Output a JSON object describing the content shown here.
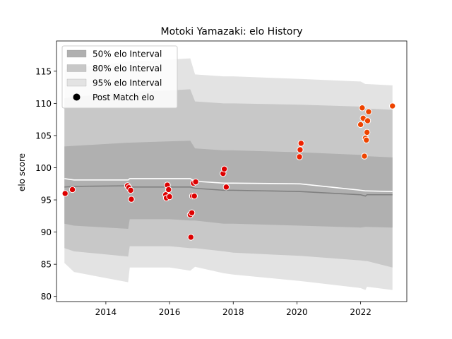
{
  "chart_data": {
    "type": "area",
    "title": "Motoki Yamazaki: elo History",
    "xlabel": "",
    "ylabel": "elo score",
    "xlim": [
      2012.45,
      2023.45
    ],
    "ylim": [
      79.2,
      119.7
    ],
    "x_ticks": [
      2014,
      2016,
      2018,
      2020,
      2022
    ],
    "y_ticks": [
      80,
      85,
      90,
      95,
      100,
      105,
      110,
      115
    ],
    "grid": false,
    "legend_placement": "top-left",
    "legend": [
      {
        "label": "50% elo Interval",
        "kind": "band",
        "color": "#b0b0b0"
      },
      {
        "label": "80% elo Interval",
        "kind": "band",
        "color": "#c8c8c8"
      },
      {
        "label": "95% elo Interval",
        "kind": "band",
        "color": "#e3e3e3"
      },
      {
        "label": "Post Match elo",
        "kind": "marker",
        "color": "#000000"
      }
    ],
    "bands": {
      "x": [
        2012.7,
        2013.0,
        2014.7,
        2014.75,
        2016.0,
        2016.65,
        2016.8,
        2017.7,
        2018.0,
        2020.1,
        2022.0,
        2022.15,
        2022.2,
        2023.0
      ],
      "p95_upper": [
        115.2,
        115.5,
        116.5,
        116.5,
        116.8,
        117.0,
        114.5,
        114.2,
        114.2,
        113.8,
        113.4,
        113.0,
        113.0,
        112.8
      ],
      "p80_upper": [
        110.8,
        111.0,
        111.8,
        111.8,
        112.0,
        112.2,
        110.3,
        110.0,
        110.0,
        109.8,
        109.5,
        109.2,
        109.2,
        109.0
      ],
      "p50_upper": [
        103.3,
        103.4,
        103.9,
        103.9,
        104.1,
        104.2,
        103.0,
        102.7,
        102.7,
        102.4,
        102.0,
        101.8,
        101.8,
        101.6
      ],
      "p50_lower": [
        91.3,
        91.0,
        90.5,
        92.0,
        92.0,
        91.8,
        91.8,
        91.3,
        91.3,
        91.0,
        90.7,
        90.8,
        90.8,
        90.7
      ],
      "p80_lower": [
        87.5,
        87.0,
        86.2,
        87.8,
        87.8,
        87.5,
        87.5,
        87.0,
        86.8,
        86.3,
        85.6,
        85.5,
        85.5,
        84.5
      ],
      "p95_lower": [
        85.2,
        83.8,
        82.2,
        84.5,
        84.5,
        84.0,
        84.6,
        83.6,
        83.4,
        82.4,
        81.3,
        81.0,
        81.5,
        81.0
      ]
    },
    "series": [
      {
        "kind": "line",
        "color": "#ffffff",
        "x": [
          2012.7,
          2013.0,
          2014.7,
          2014.75,
          2016.0,
          2016.65,
          2016.8,
          2017.7,
          2018.0,
          2020.1,
          2022.0,
          2022.15,
          2022.2,
          2023.0
        ],
        "y": [
          98.3,
          98.1,
          98.1,
          98.3,
          98.3,
          98.3,
          97.9,
          97.6,
          97.6,
          97.5,
          96.5,
          96.4,
          96.4,
          96.3
        ]
      },
      {
        "kind": "line",
        "color": "#808080",
        "x": [
          2012.7,
          2013.0,
          2014.7,
          2014.75,
          2016.0,
          2016.65,
          2016.8,
          2017.7,
          2018.0,
          2020.1,
          2022.0,
          2022.15,
          2022.2,
          2023.0
        ],
        "y": [
          97.0,
          97.1,
          97.2,
          97.0,
          97.0,
          97.0,
          96.8,
          96.5,
          96.5,
          96.3,
          95.8,
          95.6,
          95.8,
          95.8
        ]
      },
      {
        "kind": "scatter",
        "name": "Post Match elo",
        "points": [
          {
            "x": 2012.72,
            "y": 96.0,
            "color": "#dd0000"
          },
          {
            "x": 2012.95,
            "y": 96.6,
            "color": "#dd0000"
          },
          {
            "x": 2014.68,
            "y": 97.2,
            "color": "#dd0000"
          },
          {
            "x": 2014.72,
            "y": 96.9,
            "color": "#dd0000"
          },
          {
            "x": 2014.78,
            "y": 96.5,
            "color": "#dd0000"
          },
          {
            "x": 2014.8,
            "y": 95.1,
            "color": "#dd0000"
          },
          {
            "x": 2015.88,
            "y": 95.8,
            "color": "#dd0000"
          },
          {
            "x": 2015.9,
            "y": 95.3,
            "color": "#dd0000"
          },
          {
            "x": 2015.93,
            "y": 97.3,
            "color": "#dd0000"
          },
          {
            "x": 2015.97,
            "y": 96.6,
            "color": "#dd0000"
          },
          {
            "x": 2016.0,
            "y": 95.5,
            "color": "#dd0000"
          },
          {
            "x": 2016.65,
            "y": 92.7,
            "color": "#dd0000"
          },
          {
            "x": 2016.67,
            "y": 89.2,
            "color": "#dd0000"
          },
          {
            "x": 2016.7,
            "y": 93.0,
            "color": "#dd0000"
          },
          {
            "x": 2016.72,
            "y": 95.6,
            "color": "#dd0000"
          },
          {
            "x": 2016.75,
            "y": 97.6,
            "color": "#dd0000"
          },
          {
            "x": 2016.78,
            "y": 95.6,
            "color": "#dd0000"
          },
          {
            "x": 2016.82,
            "y": 97.8,
            "color": "#dd0000"
          },
          {
            "x": 2017.68,
            "y": 99.1,
            "color": "#dd0000"
          },
          {
            "x": 2017.72,
            "y": 99.8,
            "color": "#dd0000"
          },
          {
            "x": 2017.78,
            "y": 97.0,
            "color": "#dd0000"
          },
          {
            "x": 2020.08,
            "y": 101.7,
            "color": "#ee2200"
          },
          {
            "x": 2020.1,
            "y": 102.8,
            "color": "#ee2200"
          },
          {
            "x": 2020.13,
            "y": 103.8,
            "color": "#ee2200"
          },
          {
            "x": 2022.0,
            "y": 106.7,
            "color": "#ee4400"
          },
          {
            "x": 2022.05,
            "y": 109.3,
            "color": "#ee4400"
          },
          {
            "x": 2022.08,
            "y": 107.7,
            "color": "#ee4400"
          },
          {
            "x": 2022.12,
            "y": 101.8,
            "color": "#ee4400"
          },
          {
            "x": 2022.15,
            "y": 104.6,
            "color": "#ee4400"
          },
          {
            "x": 2022.18,
            "y": 104.3,
            "color": "#ee4400"
          },
          {
            "x": 2022.2,
            "y": 105.5,
            "color": "#ee4400"
          },
          {
            "x": 2022.22,
            "y": 107.3,
            "color": "#ee4400"
          },
          {
            "x": 2022.25,
            "y": 108.7,
            "color": "#ee4400"
          },
          {
            "x": 2023.0,
            "y": 109.6,
            "color": "#ee4400"
          }
        ]
      }
    ]
  }
}
